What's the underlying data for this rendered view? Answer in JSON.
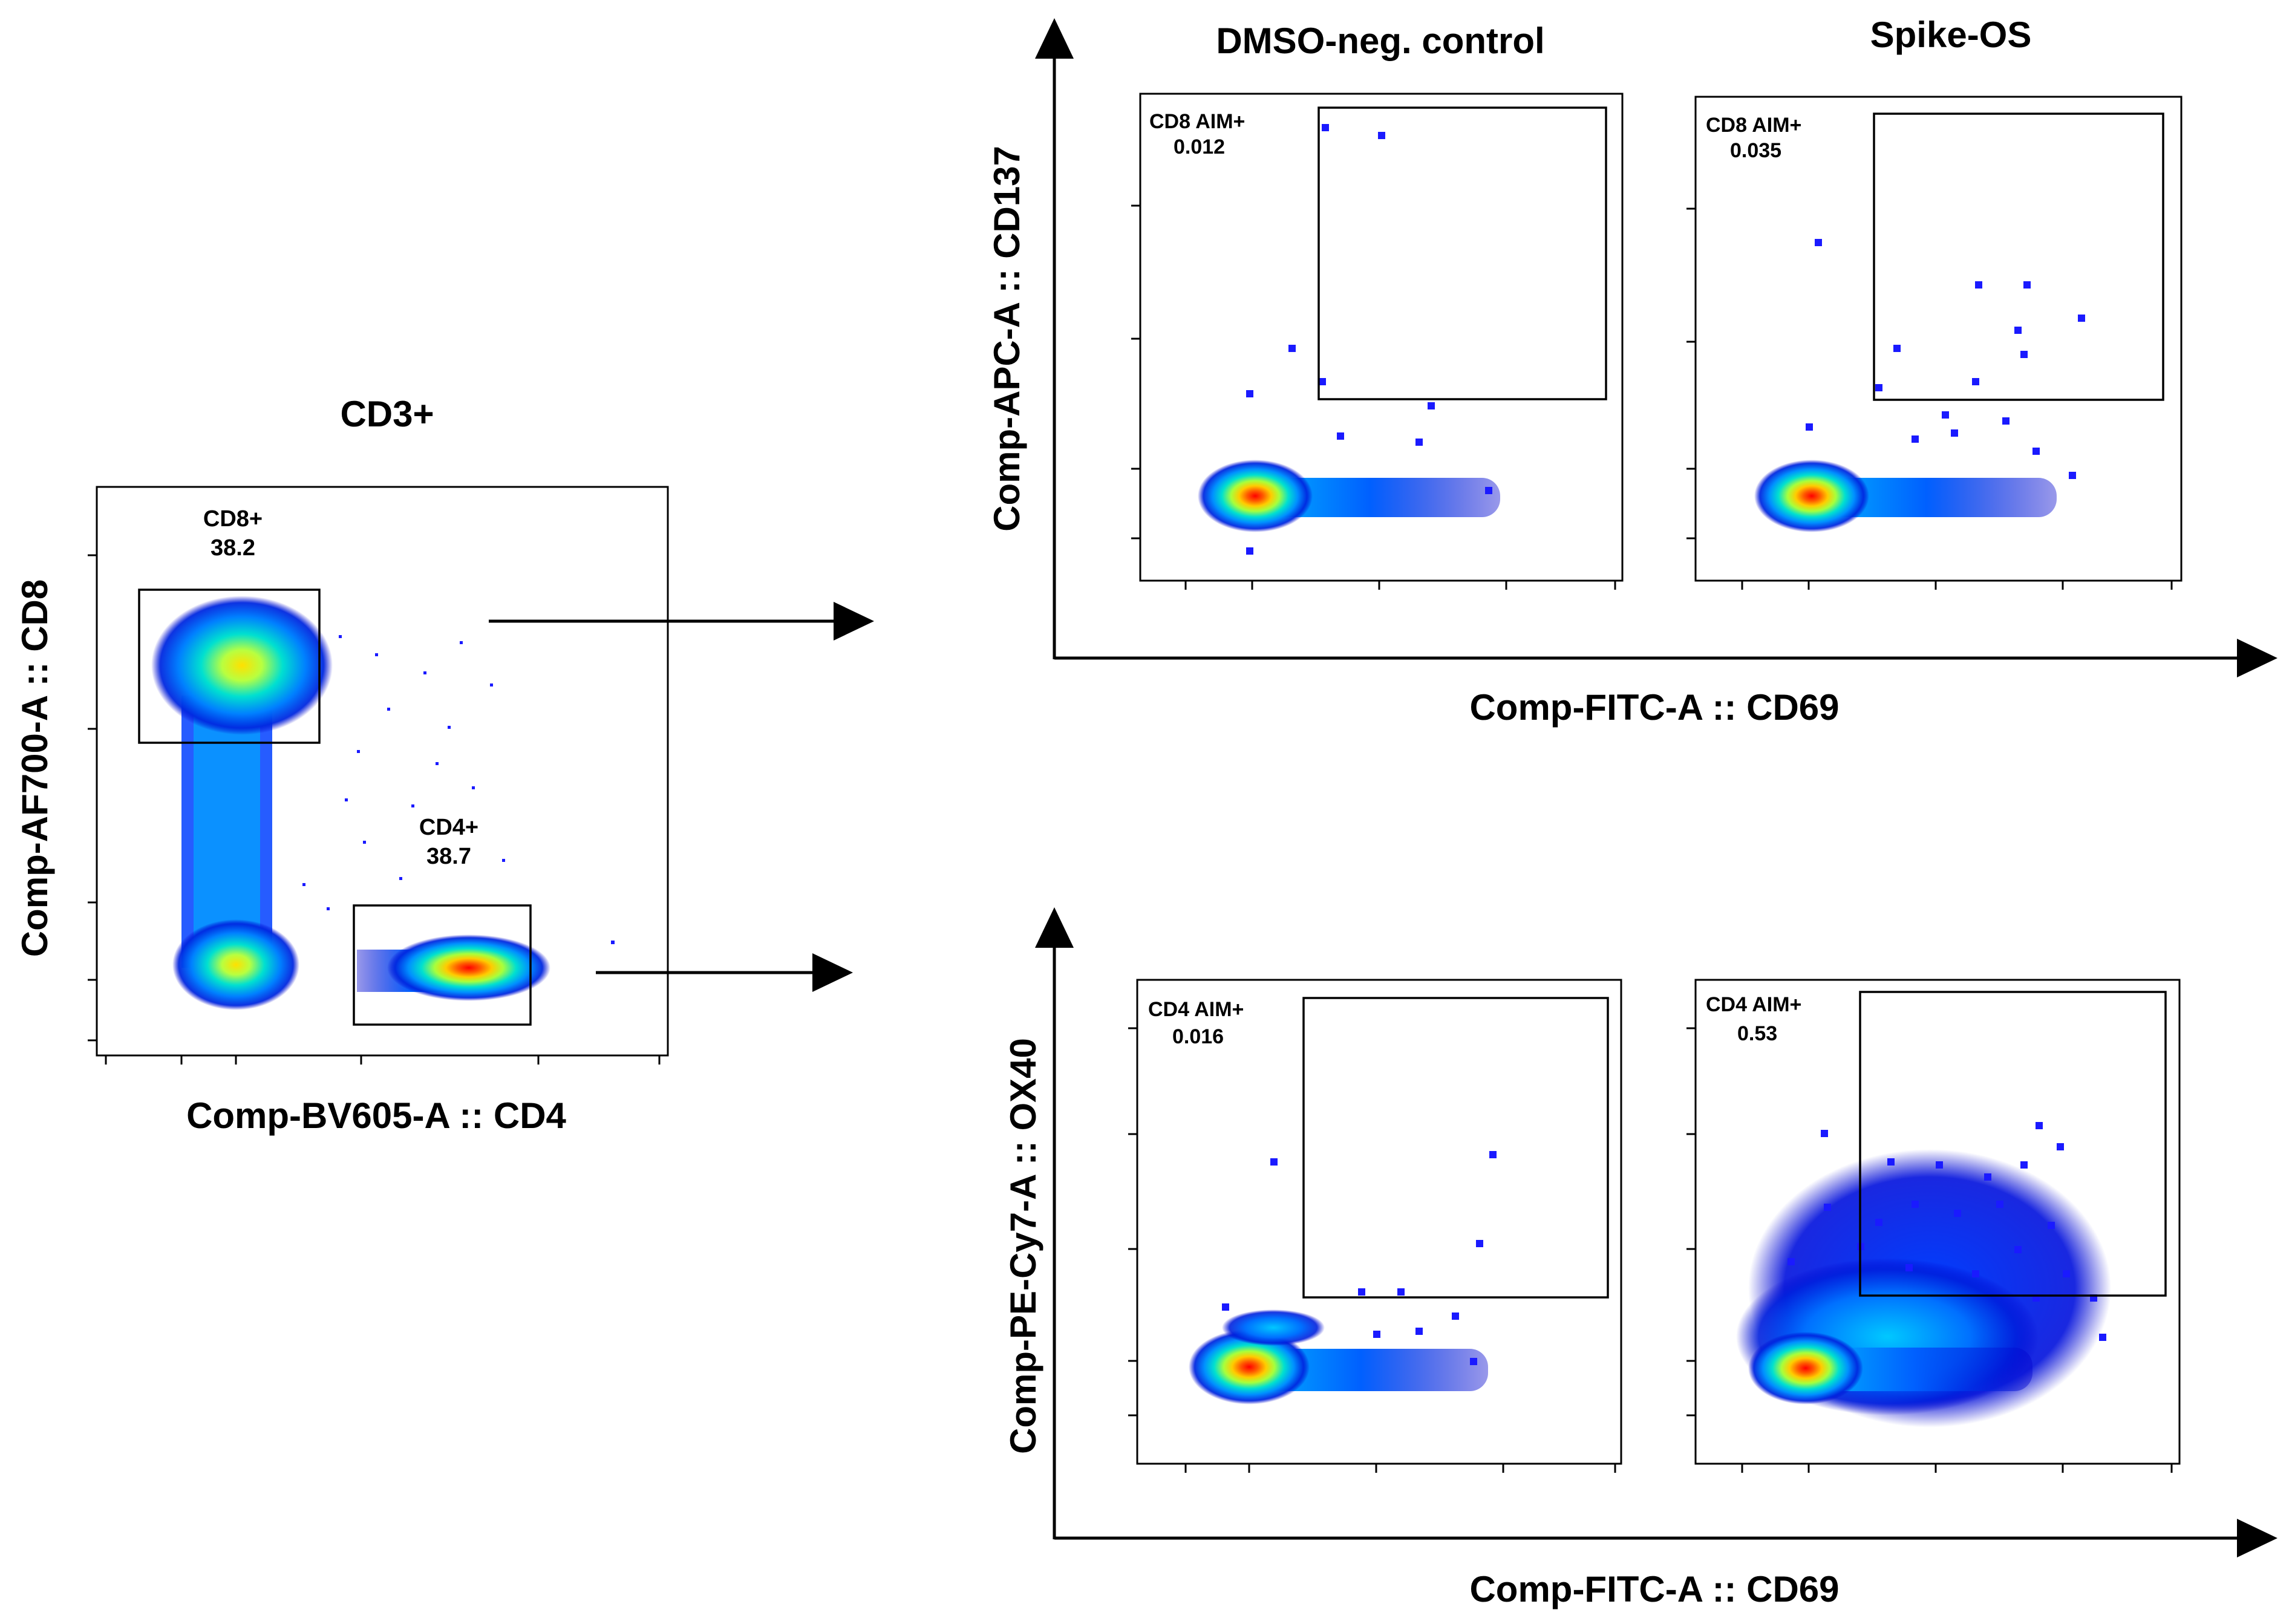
{
  "chart_data": [
    {
      "type": "scatter",
      "subtype": "flow-cytometry-density-plot",
      "title": "CD3+",
      "xlabel": "Comp-BV605-A :: CD4",
      "ylabel": "Comp-AF700-A :: CD8",
      "gates": [
        {
          "name": "CD8+",
          "value": "38.2"
        },
        {
          "name": "CD4+",
          "value": "38.7"
        }
      ]
    },
    {
      "type": "scatter",
      "subtype": "flow-cytometry-density-plot",
      "title": "DMSO-neg. control",
      "xlabel": "Comp-FITC-A :: CD69",
      "ylabel": "Comp-APC-A :: CD137",
      "gates": [
        {
          "name": "CD8 AIM+",
          "value": "0.012"
        }
      ]
    },
    {
      "type": "scatter",
      "subtype": "flow-cytometry-density-plot",
      "title": "Spike-OS",
      "xlabel": "Comp-FITC-A :: CD69",
      "ylabel": "Comp-APC-A :: CD137",
      "gates": [
        {
          "name": "CD8 AIM+",
          "value": "0.035"
        }
      ]
    },
    {
      "type": "scatter",
      "subtype": "flow-cytometry-density-plot",
      "title": "DMSO-neg. control",
      "xlabel": "Comp-FITC-A :: CD69",
      "ylabel": "Comp-PE-Cy7-A :: OX40",
      "gates": [
        {
          "name": "CD4 AIM+",
          "value": "0.016"
        }
      ]
    },
    {
      "type": "scatter",
      "subtype": "flow-cytometry-density-plot",
      "title": "Spike-OS",
      "xlabel": "Comp-FITC-A :: CD69",
      "ylabel": "Comp-PE-Cy7-A :: OX40",
      "gates": [
        {
          "name": "CD4 AIM+",
          "value": "0.53"
        }
      ]
    }
  ],
  "labels": {
    "cd3_title": "CD3+",
    "cd3_xlabel": "Comp-BV605-A :: CD4",
    "cd3_ylabel": "Comp-AF700-A :: CD8",
    "cd8_gate_name": "CD8+",
    "cd8_gate_value": "38.2",
    "cd4_gate_name": "CD4+",
    "cd4_gate_value": "38.7",
    "col1_title": "DMSO-neg. control",
    "col2_title": "Spike-OS",
    "top_xlabel": "Comp-FITC-A :: CD69",
    "top_ylabel": "Comp-APC-A :: CD137",
    "bottom_xlabel": "Comp-FITC-A :: CD69",
    "bottom_ylabel": "Comp-PE-Cy7-A :: OX40",
    "cd8_aim_name": "CD8 AIM+",
    "cd4_aim_name": "CD4 AIM+",
    "top_dmso_value": "0.012",
    "top_spike_value": "0.035",
    "bottom_dmso_value": "0.016",
    "bottom_spike_value": "0.53"
  },
  "colors": {
    "density_low": "#0000cc",
    "density_mid": "#00c8ff",
    "density_high": "#ffff00",
    "density_peak": "#ff0000"
  }
}
